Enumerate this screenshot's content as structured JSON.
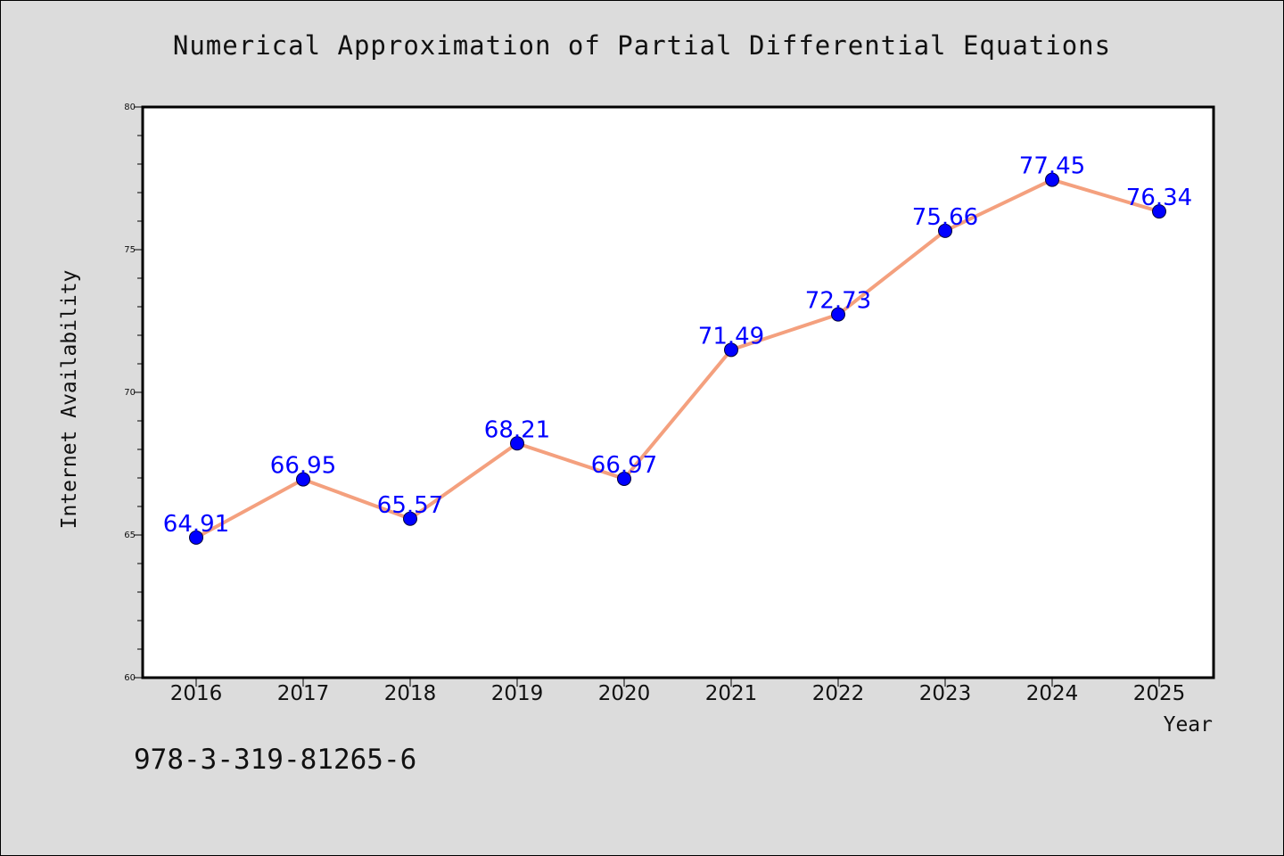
{
  "page": {
    "isbn_text": "978-3-319-81265-6"
  },
  "chart_data": {
    "type": "line",
    "title": "Numerical Approximation of Partial Differential Equations",
    "xlabel": "Year",
    "ylabel": "Internet Availability",
    "categories": [
      "2016",
      "2017",
      "2018",
      "2019",
      "2020",
      "2021",
      "2022",
      "2023",
      "2024",
      "2025"
    ],
    "series": [
      {
        "values": [
          64.91,
          66.95,
          65.57,
          68.21,
          66.97,
          71.49,
          72.73,
          75.66,
          77.45,
          76.34
        ],
        "line_color": "#f4a07e",
        "marker_color": "#0000ff",
        "label_color": "#0000ff"
      }
    ],
    "ylim": [
      60,
      80
    ],
    "yticks": [
      "60",
      "65",
      "70",
      "75",
      "80"
    ],
    "grid": false,
    "legend": "none",
    "data_labels": [
      "64.91",
      "66.95",
      "65.57",
      "68.21",
      "66.97",
      "71.49",
      "72.73",
      "75.66",
      "77.45",
      "76.34"
    ]
  }
}
